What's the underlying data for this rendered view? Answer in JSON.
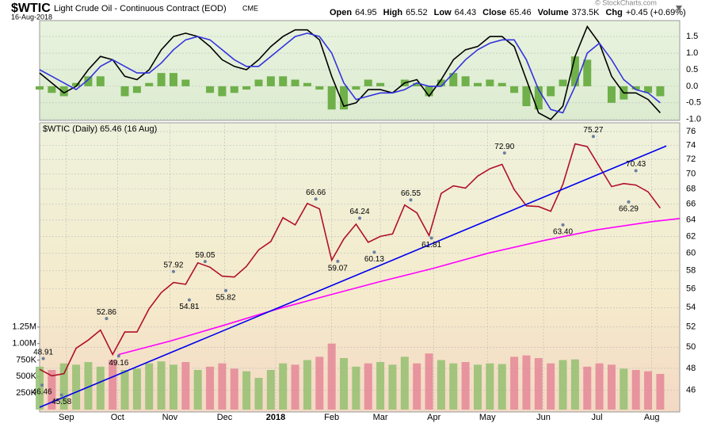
{
  "header": {
    "symbol": "$WTIC",
    "name": "Light Crude Oil - Continuous Contract (EOD)",
    "exchange": "CME",
    "date": "16-Aug-2018",
    "credit": "© StockCharts.com",
    "quote": [
      {
        "label": "Open",
        "value": "64.95"
      },
      {
        "label": "High",
        "value": "65.52"
      },
      {
        "label": "Low",
        "value": "64.43"
      },
      {
        "label": "Close",
        "value": "65.46"
      },
      {
        "label": "Volume",
        "value": "373.5K"
      },
      {
        "label": "Chg",
        "value": "+0.45 (+0.69%)"
      }
    ]
  },
  "chart_data": [
    {
      "type": "line",
      "x": [
        0,
        1,
        2,
        3,
        4,
        5,
        6,
        7,
        8,
        9,
        10,
        11,
        12,
        13,
        14,
        15,
        16,
        17,
        18,
        19,
        20,
        21,
        22,
        23,
        24,
        25,
        26,
        27,
        28,
        29,
        30,
        31,
        32,
        33,
        34,
        35,
        36,
        37,
        38,
        39,
        40,
        41,
        42,
        43,
        44,
        45,
        46,
        47,
        48,
        49,
        50,
        51
      ],
      "xlim": [
        0,
        52.6
      ],
      "ylim": [
        -1.03,
        1.98
      ],
      "yticks": [
        1.5,
        {
          "value": 1,
          "label": "1.0"
        },
        0.5,
        {
          "value": 0,
          "label": "0.0"
        },
        -0.5,
        {
          "value": -1,
          "label": "-1.0"
        }
      ],
      "series": [
        {
          "kind": "bar",
          "color": "#6fb04a",
          "values": [
            -0.1,
            -0.2,
            -0.3,
            0.1,
            0.3,
            0.3,
            0.0,
            -0.3,
            -0.2,
            0.1,
            0.4,
            0.4,
            0.2,
            0.0,
            -0.2,
            -0.3,
            -0.2,
            -0.1,
            0.2,
            0.3,
            0.3,
            0.2,
            0.1,
            -0.1,
            -0.7,
            -0.7,
            -0.1,
            0.2,
            0.1,
            0.0,
            0.2,
            0.1,
            -0.3,
            0.2,
            0.4,
            0.3,
            0.1,
            0.2,
            0.1,
            -0.2,
            -0.6,
            -0.7,
            -0.3,
            0.2,
            0.9,
            0.8,
            0.0,
            -0.5,
            -0.4,
            -0.1,
            -0.2,
            -0.3
          ]
        },
        {
          "kind": "line",
          "color": "#000000",
          "values": [
            0.4,
            0.1,
            -0.2,
            0.0,
            0.5,
            0.9,
            0.8,
            0.3,
            0.2,
            0.5,
            1.1,
            1.5,
            1.6,
            1.5,
            1.2,
            0.8,
            0.6,
            0.5,
            0.8,
            1.2,
            1.5,
            1.7,
            1.7,
            1.4,
            0.3,
            -0.6,
            -0.5,
            -0.1,
            -0.1,
            -0.2,
            0.1,
            0.2,
            -0.3,
            0.2,
            0.8,
            1.1,
            1.2,
            1.5,
            1.5,
            1.2,
            0.2,
            -0.8,
            -1.0,
            -0.6,
            0.9,
            1.8,
            1.3,
            0.3,
            -0.2,
            -0.2,
            -0.4,
            -0.8
          ]
        },
        {
          "kind": "line",
          "color": "#3333dd",
          "values": [
            0.5,
            0.3,
            0.1,
            -0.1,
            0.2,
            0.6,
            0.8,
            0.6,
            0.4,
            0.4,
            0.7,
            1.1,
            1.4,
            1.5,
            1.4,
            1.1,
            0.8,
            0.6,
            0.6,
            0.9,
            1.2,
            1.5,
            1.6,
            1.5,
            1.0,
            0.1,
            -0.4,
            -0.3,
            -0.2,
            -0.2,
            -0.1,
            0.1,
            0.0,
            0.0,
            0.4,
            0.8,
            1.1,
            1.3,
            1.4,
            1.4,
            0.8,
            -0.1,
            -0.7,
            -0.8,
            0.0,
            1.0,
            1.3,
            0.8,
            0.2,
            -0.1,
            -0.2,
            -0.5
          ]
        }
      ]
    },
    {
      "type": "line",
      "title": "$WTIC (Daily) 65.46 (16 Aug)",
      "log": true,
      "grid": true,
      "x": [
        0,
        1,
        2,
        3,
        4,
        5,
        6,
        7,
        8,
        9,
        10,
        11,
        12,
        13,
        14,
        15,
        16,
        17,
        18,
        19,
        20,
        21,
        22,
        23,
        24,
        25,
        26,
        27,
        28,
        29,
        30,
        31,
        32,
        33,
        34,
        35,
        36,
        37,
        38,
        39,
        40,
        41,
        42,
        43,
        44,
        45,
        46,
        47,
        48,
        49,
        50,
        51
      ],
      "xlim": [
        0,
        52.6
      ],
      "xticks": [
        {
          "value": 2.2,
          "label": "Sep"
        },
        {
          "value": 6.4,
          "label": "Oct"
        },
        {
          "value": 10.7,
          "label": "Nov"
        },
        {
          "value": 15.2,
          "label": "Dec"
        },
        {
          "value": 19.4,
          "label": "2018"
        },
        {
          "value": 24,
          "label": "Feb"
        },
        {
          "value": 28,
          "label": "Mar"
        },
        {
          "value": 32.4,
          "label": "Apr"
        },
        {
          "value": 36.8,
          "label": "May"
        },
        {
          "value": 41.4,
          "label": "Jun"
        },
        {
          "value": 45.8,
          "label": "Jul"
        },
        {
          "value": 50.3,
          "label": "Aug"
        }
      ],
      "ylim": [
        44.1,
        77.3
      ],
      "yticks": [
        46,
        48,
        50,
        52,
        54,
        56,
        58,
        60,
        62,
        64,
        66,
        68,
        70,
        72,
        74,
        76
      ],
      "series": [
        {
          "color": "#b0102a",
          "values": [
            47.9,
            47.3,
            47.5,
            49.9,
            50.7,
            51.7,
            49.3,
            51.5,
            51.5,
            53.9,
            55.6,
            56.7,
            56.5,
            58.9,
            58.4,
            57.4,
            57.3,
            58.5,
            60.4,
            61.4,
            64.3,
            63.4,
            66.1,
            65.4,
            59.2,
            61.7,
            63.5,
            61.3,
            62.0,
            62.3,
            65.9,
            64.9,
            62.1,
            67.4,
            68.4,
            68.1,
            69.7,
            70.7,
            71.3,
            67.9,
            65.8,
            65.7,
            65.1,
            68.6,
            74.2,
            73.8,
            71.0,
            68.3,
            68.7,
            68.5,
            67.6,
            65.5
          ]
        },
        {
          "color": "#ff00ff",
          "x": [
            6.5,
            10.7,
            15.2,
            19.4,
            24,
            28,
            32.4,
            36.8,
            41.4,
            45.8,
            50.3,
            52.6
          ],
          "values": [
            49.3,
            50.6,
            52.2,
            53.8,
            55.4,
            56.8,
            58.3,
            60.0,
            61.5,
            62.8,
            63.8,
            64.2
          ]
        },
        {
          "color": "#0000ee",
          "x": [
            0,
            51.5
          ],
          "values": [
            44.5,
            73.9
          ]
        }
      ],
      "annotations": [
        {
          "x": 0.3,
          "value": 48.91
        },
        {
          "x": 0.2,
          "value": 46.46
        },
        {
          "x": 1.8,
          "value": 45.58
        },
        {
          "x": 5.5,
          "value": 52.86
        },
        {
          "x": 6.5,
          "value": 49.16
        },
        {
          "x": 11,
          "value": 57.92
        },
        {
          "x": 12.3,
          "value": 54.81
        },
        {
          "x": 13.6,
          "value": 59.05
        },
        {
          "x": 15.3,
          "value": 55.82
        },
        {
          "x": 22.7,
          "value": 66.66
        },
        {
          "x": 24.5,
          "value": 59.07
        },
        {
          "x": 26.3,
          "value": 64.24
        },
        {
          "x": 27.5,
          "value": 60.13
        },
        {
          "x": 30.5,
          "value": 66.55
        },
        {
          "x": 32.2,
          "value": 61.81
        },
        {
          "x": 38.2,
          "value": 72.9,
          "label": "72.90"
        },
        {
          "x": 43,
          "value": 63.4,
          "label": "63.40"
        },
        {
          "x": 45.5,
          "value": 75.27
        },
        {
          "x": 49,
          "value": 70.43
        },
        {
          "x": 48.4,
          "value": 66.29
        }
      ],
      "volume": {
        "ylim": [
          0,
          1500000
        ],
        "up_color": "#93c070",
        "down_color": "#e48796",
        "yticks": [
          {
            "value": 250000,
            "label": "250K"
          },
          {
            "value": 500000,
            "label": "500K"
          },
          {
            "value": 750000,
            "label": "750K"
          },
          {
            "value": 1000000,
            "label": "1.00M"
          },
          {
            "value": 1250000,
            "label": "1.25M"
          }
        ],
        "values": [
          650000,
          600000,
          700000,
          680000,
          720000,
          650000,
          750000,
          600000,
          620000,
          700000,
          730000,
          680000,
          720000,
          600000,
          650000,
          700000,
          620000,
          580000,
          480000,
          600000,
          700000,
          680000,
          750000,
          800000,
          1000000,
          780000,
          650000,
          700000,
          720000,
          680000,
          800000,
          700000,
          850000,
          750000,
          700000,
          720000,
          680000,
          700000,
          690000,
          800000,
          820000,
          780000,
          700000,
          750000,
          760000,
          650000,
          700000,
          680000,
          620000,
          600000,
          580000,
          540000
        ]
      }
    }
  ]
}
